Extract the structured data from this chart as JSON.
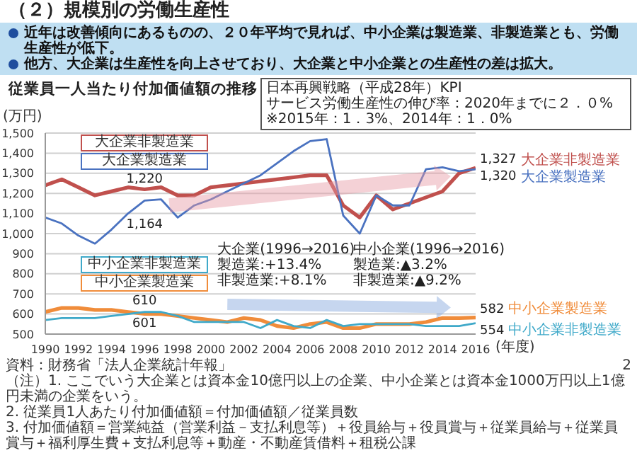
{
  "chart_data": {
    "type": "line",
    "title": "（２）規模別の労働生産性",
    "subtitle": "近年は改善傾向にあるものの、２０年平均で見れば、中小企業は製造業、非製造業とも、労働生産性が低下。",
    "ylabel": "(万円)",
    "xlabel": "(年度)",
    "annotations": [
      "他方、大企業は生産性を向上させており、大企業と中小企業との生産性の差は拡大。",
      "従業員一人当たり付加価値額の推移",
      "日本再興戦略（平成28年）KPI\nサービス労働生産性の伸び率：2020年までに２．０%\n※2015年：1．3%、2014年：1．0%",
      "大企業(1996→2016)\n製造業:+13.4%\n非製造業:+8.1%",
      "中小企業(1996→2016)\n製造業:▲3.2%\n非製造業:▲9.2%",
      "資料：財務省「法人企業統計年報」",
      "（注）1. ここでいう大企業とは資本金10億円以上の企業、中小企業とは資本金1000万円以上1億円未満の企業をいう。",
      "2. 従業員1人あたり付加価値額＝付加価値額／従業員数",
      "3. 付加価値額＝営業純益（営業利益－支払利息等）＋役員給与＋役員賞与＋従業員給与＋従業員賞与＋福利厚生費＋支払利息等＋動産・不動産賃借料＋租税公課",
      "2"
    ],
    "x": [
      1990,
      1991,
      1992,
      1993,
      1994,
      1995,
      1996,
      1997,
      1998,
      1999,
      2000,
      2001,
      2002,
      2003,
      2004,
      2005,
      2006,
      2007,
      2008,
      2009,
      2010,
      2011,
      2012,
      2013,
      2014,
      2015,
      2016
    ],
    "series": [
      {
        "name": "大企業非製造業",
        "color": "#c0504d",
        "values": [
          1240,
          1270,
          1230,
          1190,
          1210,
          1230,
          1220,
          1230,
          1190,
          1190,
          1230,
          1240,
          1250,
          1260,
          1270,
          1280,
          1290,
          1290,
          1140,
          1080,
          1190,
          1120,
          1150,
          1180,
          1210,
          1300,
          1327
        ],
        "value_labels": [
          null,
          null,
          null,
          null,
          null,
          null,
          "1,220",
          null,
          null,
          null,
          null,
          null,
          null,
          null,
          null,
          null,
          null,
          null,
          null,
          null,
          null,
          null,
          null,
          null,
          null,
          null,
          "1,327"
        ]
      },
      {
        "name": "大企業製造業",
        "color": "#4a72c0",
        "values": [
          1080,
          1050,
          990,
          950,
          1020,
          1100,
          1164,
          1170,
          1080,
          1140,
          1170,
          1210,
          1250,
          1290,
          1350,
          1410,
          1460,
          1470,
          1090,
          1000,
          1190,
          1140,
          1140,
          1320,
          1330,
          1310,
          1320
        ],
        "value_labels": [
          null,
          null,
          null,
          null,
          null,
          null,
          "1,164",
          null,
          null,
          null,
          null,
          null,
          null,
          null,
          null,
          null,
          null,
          null,
          null,
          null,
          null,
          null,
          null,
          null,
          null,
          null,
          "1,320"
        ]
      },
      {
        "name": "中小企業製造業",
        "color": "#f08c3a",
        "values": [
          610,
          630,
          630,
          620,
          620,
          610,
          601,
          600,
          590,
          580,
          570,
          560,
          580,
          570,
          540,
          530,
          550,
          560,
          530,
          530,
          550,
          550,
          550,
          560,
          580,
          580,
          582
        ],
        "value_labels": [
          null,
          null,
          null,
          null,
          null,
          null,
          "601",
          null,
          null,
          null,
          null,
          null,
          null,
          null,
          null,
          null,
          null,
          null,
          null,
          null,
          null,
          null,
          null,
          null,
          null,
          null,
          "582"
        ]
      },
      {
        "name": "中小企業非製造業",
        "color": "#3fa9c9",
        "values": [
          570,
          580,
          580,
          580,
          590,
          600,
          610,
          610,
          590,
          560,
          560,
          560,
          560,
          530,
          570,
          540,
          530,
          570,
          540,
          550,
          550,
          550,
          550,
          540,
          540,
          540,
          554
        ],
        "value_labels": [
          null,
          null,
          null,
          null,
          null,
          null,
          "610",
          null,
          null,
          null,
          null,
          null,
          null,
          null,
          null,
          null,
          null,
          null,
          null,
          null,
          null,
          null,
          null,
          null,
          null,
          null,
          "554"
        ]
      }
    ],
    "xlim": [
      1990,
      2016
    ],
    "xticks": [
      1990,
      1992,
      1994,
      1996,
      1998,
      2000,
      2002,
      2004,
      2006,
      2008,
      2010,
      2012,
      2014,
      2016
    ],
    "ylim": [
      500,
      1500
    ],
    "yticks": [
      {
        "value": 500,
        "label": "500"
      },
      {
        "value": 600,
        "label": "600"
      },
      {
        "value": 700,
        "label": "700"
      },
      {
        "value": 800,
        "label": "800"
      },
      {
        "value": 900,
        "label": "900"
      },
      {
        "value": 1000,
        "label": "1,000"
      },
      {
        "value": 1100,
        "label": "1,100"
      },
      {
        "value": 1200,
        "label": "1,200"
      },
      {
        "value": 1300,
        "label": "1,300"
      },
      {
        "value": 1400,
        "label": "1,400"
      },
      {
        "value": 1500,
        "label": "1,500"
      }
    ],
    "grid": "y"
  }
}
